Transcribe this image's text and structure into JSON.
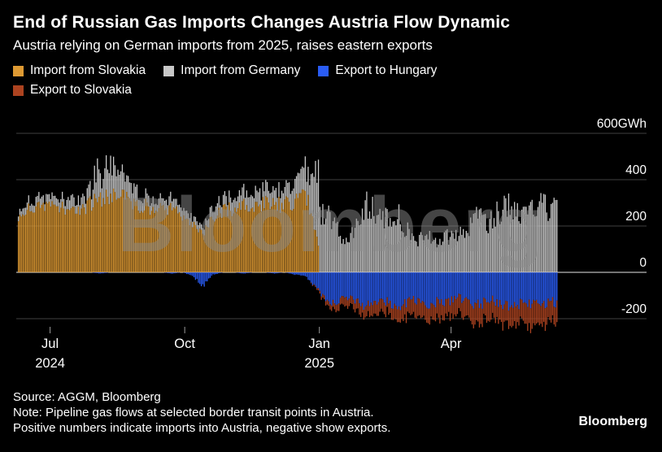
{
  "header": {
    "title": "End of Russian Gas Imports Changes Austria Flow Dynamic",
    "subtitle": "Austria relying on German imports from 2025, raises eastern exports"
  },
  "chart_data": {
    "type": "bar",
    "stacked": true,
    "unit": "GWh",
    "title": "End of Russian Gas Imports Changes Austria Flow Dynamic",
    "x_start": "2024-06-09",
    "x_interval_days": 7,
    "series": [
      {
        "name": "Import from Slovakia",
        "color": "#DE9A33",
        "values": [
          250,
          265,
          270,
          280,
          285,
          270,
          260,
          290,
          310,
          330,
          320,
          300,
          285,
          275,
          270,
          265,
          240,
          200,
          170,
          230,
          260,
          270,
          285,
          280,
          290,
          285,
          295,
          300,
          340,
          180,
          0,
          0,
          0,
          0,
          0,
          0,
          0,
          0,
          0,
          0,
          0,
          0,
          0,
          0,
          0,
          0,
          0,
          0,
          0,
          0,
          0,
          0,
          0
        ]
      },
      {
        "name": "Import from Germany",
        "color": "#C8C8C8",
        "values": [
          25,
          30,
          35,
          30,
          35,
          45,
          40,
          55,
          90,
          130,
          100,
          70,
          45,
          40,
          35,
          40,
          35,
          30,
          25,
          40,
          45,
          50,
          55,
          55,
          60,
          60,
          65,
          75,
          120,
          200,
          260,
          180,
          120,
          210,
          280,
          250,
          220,
          240,
          170,
          130,
          160,
          120,
          150,
          170,
          200,
          230,
          210,
          260,
          290,
          250,
          280,
          290,
          270
        ]
      },
      {
        "name": "Export to Hungary",
        "color": "#2A5CF4",
        "values": [
          0,
          0,
          0,
          0,
          0,
          0,
          0,
          0,
          -5,
          0,
          0,
          0,
          0,
          0,
          0,
          -5,
          0,
          -15,
          -60,
          -10,
          0,
          0,
          -5,
          0,
          0,
          -5,
          0,
          -10,
          -15,
          -60,
          -120,
          -130,
          -110,
          -125,
          -150,
          -140,
          -130,
          -145,
          -130,
          -120,
          -140,
          -125,
          -130,
          -110,
          -130,
          -140,
          -120,
          -130,
          -150,
          -140,
          -135,
          -140,
          -130
        ]
      },
      {
        "name": "Export to Slovakia",
        "color": "#AC4320",
        "values": [
          0,
          0,
          0,
          0,
          0,
          0,
          0,
          0,
          0,
          0,
          0,
          0,
          0,
          0,
          0,
          0,
          0,
          0,
          0,
          0,
          0,
          0,
          0,
          0,
          0,
          0,
          0,
          0,
          0,
          -5,
          -20,
          -30,
          -35,
          -40,
          -50,
          -55,
          -45,
          -60,
          -65,
          -70,
          -60,
          -75,
          -70,
          -70,
          -80,
          -85,
          -75,
          -85,
          -90,
          -80,
          -95,
          -90,
          -85
        ]
      }
    ],
    "yticks": [
      {
        "value": 600,
        "label": "600GWh"
      },
      {
        "value": 400,
        "label": "400"
      },
      {
        "value": 200,
        "label": "200"
      },
      {
        "value": 0,
        "label": "0"
      },
      {
        "value": -200,
        "label": "-200"
      }
    ],
    "xticks": [
      {
        "day": 22,
        "label": "Jul",
        "sublabel": "2024"
      },
      {
        "day": 114,
        "label": "Oct",
        "sublabel": ""
      },
      {
        "day": 206,
        "label": "Jan",
        "sublabel": "2025"
      },
      {
        "day": 296,
        "label": "Apr",
        "sublabel": ""
      }
    ],
    "ylim": [
      -290,
      620
    ],
    "grid": true,
    "legend_position": "top"
  },
  "footer": {
    "source": "Source: AGGM, Bloomberg",
    "note1": "Note: Pipeline gas flows at selected border transit points in Austria.",
    "note2": "Positive numbers indicate imports into Austria, negative show exports."
  },
  "branding": {
    "watermark": "Bloomberg",
    "logo": "Bloomberg"
  }
}
